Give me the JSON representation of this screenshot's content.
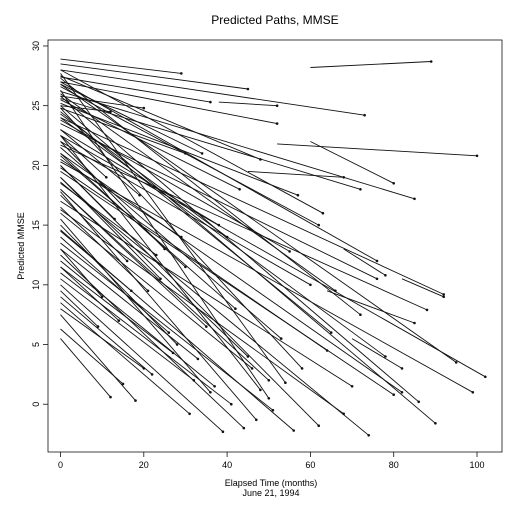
{
  "chart_data": {
    "type": "line",
    "title": "Predicted Paths, MMSE",
    "xlabel": "Elapsed Time (months)",
    "xlabel_sub": "June 21, 1994",
    "ylabel": "Predicted MMSE",
    "xlim": [
      -3,
      106
    ],
    "ylim": [
      -4,
      30.5
    ],
    "xticks": [
      0,
      20,
      40,
      60,
      80,
      100
    ],
    "yticks": [
      0,
      5,
      10,
      15,
      20,
      25,
      30
    ],
    "grid": false,
    "legend": "none",
    "line_color": "#111111",
    "series": [
      {
        "x": [
          0,
          29
        ],
        "y": [
          28.9,
          27.7
        ]
      },
      {
        "x": [
          0,
          45
        ],
        "y": [
          28.5,
          26.4
        ]
      },
      {
        "x": [
          0,
          73
        ],
        "y": [
          28.0,
          24.2
        ]
      },
      {
        "x": [
          0,
          36
        ],
        "y": [
          27.4,
          25.3
        ]
      },
      {
        "x": [
          0,
          52
        ],
        "y": [
          27.0,
          23.5
        ]
      },
      {
        "x": [
          60,
          89
        ],
        "y": [
          28.2,
          28.7
        ]
      },
      {
        "x": [
          52,
          100
        ],
        "y": [
          21.8,
          20.8
        ]
      },
      {
        "x": [
          0,
          85
        ],
        "y": [
          26.2,
          17.2
        ]
      },
      {
        "x": [
          0,
          72
        ],
        "y": [
          25.6,
          18.0
        ]
      },
      {
        "x": [
          0,
          62
        ],
        "y": [
          26.6,
          15.0
        ]
      },
      {
        "x": [
          0,
          92
        ],
        "y": [
          24.0,
          9.2
        ]
      },
      {
        "x": [
          0,
          102
        ],
        "y": [
          22.5,
          2.3
        ]
      },
      {
        "x": [
          0,
          88
        ],
        "y": [
          21.7,
          7.9
        ]
      },
      {
        "x": [
          0,
          99
        ],
        "y": [
          20.3,
          1.0
        ]
      },
      {
        "x": [
          0,
          80
        ],
        "y": [
          19.5,
          0.8
        ]
      },
      {
        "x": [
          0,
          90
        ],
        "y": [
          25.0,
          -1.6
        ]
      },
      {
        "x": [
          0,
          72
        ],
        "y": [
          27.3,
          7.5
        ]
      },
      {
        "x": [
          0,
          76
        ],
        "y": [
          23.5,
          10.5
        ]
      },
      {
        "x": [
          0,
          66
        ],
        "y": [
          26.0,
          9.5
        ]
      },
      {
        "x": [
          0,
          58
        ],
        "y": [
          24.8,
          3.0
        ]
      },
      {
        "x": [
          0,
          54
        ],
        "y": [
          27.7,
          1.8
        ]
      },
      {
        "x": [
          0,
          50
        ],
        "y": [
          26.3,
          0.5
        ]
      },
      {
        "x": [
          0,
          48
        ],
        "y": [
          22.5,
          1.2
        ]
      },
      {
        "x": [
          0,
          62
        ],
        "y": [
          20.0,
          -1.8
        ]
      },
      {
        "x": [
          0,
          74
        ],
        "y": [
          18.6,
          -2.6
        ]
      },
      {
        "x": [
          0,
          68
        ],
        "y": [
          16.3,
          -0.8
        ]
      },
      {
        "x": [
          0,
          56
        ],
        "y": [
          14.6,
          -2.2
        ]
      },
      {
        "x": [
          0,
          47
        ],
        "y": [
          17.8,
          -1.3
        ]
      },
      {
        "x": [
          0,
          44
        ],
        "y": [
          12.5,
          -2.0
        ]
      },
      {
        "x": [
          0,
          39
        ],
        "y": [
          10.0,
          -2.3
        ]
      },
      {
        "x": [
          0,
          36
        ],
        "y": [
          15.5,
          1.0
        ]
      },
      {
        "x": [
          0,
          33
        ],
        "y": [
          13.0,
          3.8
        ]
      },
      {
        "x": [
          0,
          31
        ],
        "y": [
          8.5,
          -0.8
        ]
      },
      {
        "x": [
          0,
          27
        ],
        "y": [
          11.5,
          4.3
        ]
      },
      {
        "x": [
          0,
          22
        ],
        "y": [
          9.0,
          2.5
        ]
      },
      {
        "x": [
          0,
          18
        ],
        "y": [
          7.5,
          0.3
        ]
      },
      {
        "x": [
          0,
          12
        ],
        "y": [
          5.5,
          0.6
        ]
      },
      {
        "x": [
          0,
          15
        ],
        "y": [
          6.3,
          1.7
        ]
      },
      {
        "x": [
          0,
          20
        ],
        "y": [
          8.0,
          3.0
        ]
      },
      {
        "x": [
          0,
          10
        ],
        "y": [
          13.0,
          9.0
        ]
      },
      {
        "x": [
          0,
          24
        ],
        "y": [
          19.0,
          10.5
        ]
      },
      {
        "x": [
          0,
          30
        ],
        "y": [
          21.0,
          11.5
        ]
      },
      {
        "x": [
          0,
          40
        ],
        "y": [
          24.3,
          14.0
        ]
      },
      {
        "x": [
          0,
          42
        ],
        "y": [
          20.8,
          8.0
        ]
      },
      {
        "x": [
          0,
          35
        ],
        "y": [
          18.0,
          6.5
        ]
      },
      {
        "x": [
          0,
          28
        ],
        "y": [
          15.0,
          5.0
        ]
      },
      {
        "x": [
          0,
          25
        ],
        "y": [
          22.0,
          13.0
        ]
      },
      {
        "x": [
          0,
          19
        ],
        "y": [
          23.0,
          17.5
        ]
      },
      {
        "x": [
          0,
          55
        ],
        "y": [
          23.8,
          12.8
        ]
      },
      {
        "x": [
          0,
          60
        ],
        "y": [
          22.0,
          10.0
        ]
      },
      {
        "x": [
          0,
          64
        ],
        "y": [
          19.8,
          4.5
        ]
      },
      {
        "x": [
          0,
          70
        ],
        "y": [
          17.0,
          1.5
        ]
      },
      {
        "x": [
          0,
          53
        ],
        "y": [
          21.5,
          5.5
        ]
      },
      {
        "x": [
          0,
          46
        ],
        "y": [
          16.0,
          3.0
        ]
      },
      {
        "x": [
          0,
          51
        ],
        "y": [
          13.5,
          -0.5
        ]
      },
      {
        "x": [
          0,
          41
        ],
        "y": [
          11.0,
          0.0
        ]
      },
      {
        "x": [
          0,
          37
        ],
        "y": [
          12.0,
          1.5
        ]
      },
      {
        "x": [
          0,
          32
        ],
        "y": [
          10.5,
          2.0
        ]
      },
      {
        "x": [
          0,
          26
        ],
        "y": [
          14.0,
          6.0
        ]
      },
      {
        "x": [
          0,
          21
        ],
        "y": [
          16.5,
          9.5
        ]
      },
      {
        "x": [
          0,
          16
        ],
        "y": [
          17.5,
          12.0
        ]
      },
      {
        "x": [
          0,
          13
        ],
        "y": [
          20.0,
          15.5
        ]
      },
      {
        "x": [
          0,
          11
        ],
        "y": [
          22.5,
          19.0
        ]
      },
      {
        "x": [
          0,
          34
        ],
        "y": [
          26.8,
          21.0
        ]
      },
      {
        "x": [
          0,
          43
        ],
        "y": [
          25.5,
          18.0
        ]
      },
      {
        "x": [
          0,
          57
        ],
        "y": [
          25.2,
          17.5
        ]
      },
      {
        "x": [
          0,
          48
        ],
        "y": [
          27.5,
          20.5
        ]
      },
      {
        "x": [
          0,
          38
        ],
        "y": [
          23.0,
          15.0
        ]
      },
      {
        "x": [
          0,
          29
        ],
        "y": [
          20.5,
          14.0
        ]
      },
      {
        "x": [
          0,
          23
        ],
        "y": [
          18.5,
          12.5
        ]
      },
      {
        "x": [
          0,
          17
        ],
        "y": [
          14.5,
          9.5
        ]
      },
      {
        "x": [
          0,
          14
        ],
        "y": [
          11.5,
          7.0
        ]
      },
      {
        "x": [
          0,
          9
        ],
        "y": [
          9.5,
          6.5
        ]
      },
      {
        "x": [
          0,
          45
        ],
        "y": [
          19.0,
          4.0
        ]
      },
      {
        "x": [
          0,
          50
        ],
        "y": [
          18.0,
          2.0
        ]
      },
      {
        "x": [
          0,
          65
        ],
        "y": [
          24.5,
          6.0
        ]
      },
      {
        "x": [
          0,
          78
        ],
        "y": [
          24.0,
          4.0
        ]
      },
      {
        "x": [
          0,
          82
        ],
        "y": [
          21.0,
          1.0
        ]
      },
      {
        "x": [
          0,
          95
        ],
        "y": [
          26.8,
          3.5
        ]
      },
      {
        "x": [
          0,
          12
        ],
        "y": [
          25.0,
          24.5
        ]
      },
      {
        "x": [
          0,
          20
        ],
        "y": [
          25.8,
          24.8
        ]
      },
      {
        "x": [
          0,
          30
        ],
        "y": [
          24.8,
          21.0
        ]
      },
      {
        "x": [
          38,
          52
        ],
        "y": [
          25.3,
          25.0
        ]
      },
      {
        "x": [
          45,
          68
        ],
        "y": [
          19.5,
          19.0
        ]
      },
      {
        "x": [
          60,
          80
        ],
        "y": [
          22.0,
          18.5
        ]
      },
      {
        "x": [
          64,
          85
        ],
        "y": [
          9.5,
          6.8
        ]
      },
      {
        "x": [
          82,
          92
        ],
        "y": [
          10.5,
          9.0
        ]
      },
      {
        "x": [
          68,
          78
        ],
        "y": [
          13.0,
          10.8
        ]
      },
      {
        "x": [
          70,
          82
        ],
        "y": [
          5.5,
          3.0
        ]
      },
      {
        "x": [
          0,
          86
        ],
        "y": [
          25.8,
          0.2
        ]
      },
      {
        "x": [
          0,
          63
        ],
        "y": [
          28.0,
          16.0
        ]
      },
      {
        "x": [
          0,
          76
        ],
        "y": [
          27.0,
          12.0
        ]
      }
    ]
  }
}
